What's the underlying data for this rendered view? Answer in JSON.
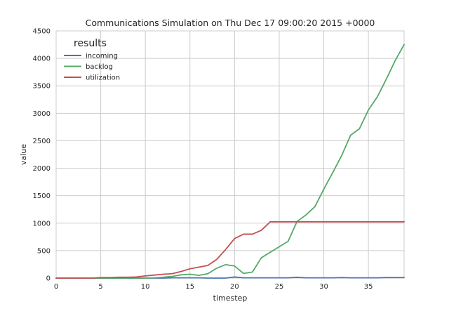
{
  "chart_data": {
    "type": "line",
    "title": "Communications Simulation on Thu Dec 17 09:00:20 2015 +0000",
    "xlabel": "timestep",
    "ylabel": "value",
    "xlim": [
      0,
      39
    ],
    "ylim": [
      0,
      4500
    ],
    "xticks": [
      0,
      5,
      10,
      15,
      20,
      25,
      30,
      35
    ],
    "yticks": [
      0,
      500,
      1000,
      1500,
      2000,
      2500,
      3000,
      3500,
      4000,
      4500
    ],
    "grid": true,
    "legend": {
      "title": "results",
      "placement": "top-left"
    },
    "x": [
      0,
      1,
      2,
      3,
      4,
      5,
      6,
      7,
      8,
      9,
      10,
      11,
      12,
      13,
      14,
      15,
      16,
      17,
      18,
      19,
      20,
      21,
      22,
      23,
      24,
      25,
      26,
      27,
      28,
      29,
      30,
      31,
      32,
      33,
      34,
      35,
      36,
      37,
      38,
      39
    ],
    "series": [
      {
        "name": "incoming",
        "color": "#4c72b0",
        "values": [
          0,
          0,
          0,
          0,
          0,
          0,
          0,
          0,
          0,
          0,
          0,
          0,
          0,
          5,
          5,
          5,
          5,
          0,
          0,
          0,
          20,
          5,
          5,
          5,
          5,
          5,
          5,
          15,
          5,
          5,
          5,
          5,
          10,
          5,
          5,
          5,
          5,
          10,
          10,
          10
        ]
      },
      {
        "name": "backlog",
        "color": "#55a868",
        "values": [
          0,
          0,
          0,
          0,
          0,
          0,
          0,
          0,
          0,
          0,
          0,
          5,
          15,
          30,
          60,
          70,
          50,
          80,
          180,
          245,
          220,
          85,
          110,
          370,
          470,
          570,
          670,
          1030,
          1150,
          1300,
          1620,
          1920,
          2230,
          2600,
          2720,
          3060,
          3300,
          3620,
          3960,
          4250
        ]
      },
      {
        "name": "utilization",
        "color": "#c44e52",
        "values": [
          0,
          0,
          0,
          0,
          0,
          10,
          10,
          15,
          15,
          20,
          40,
          55,
          70,
          80,
          120,
          170,
          200,
          230,
          340,
          520,
          720,
          800,
          800,
          870,
          1025,
          1025,
          1025,
          1025,
          1025,
          1025,
          1025,
          1025,
          1025,
          1025,
          1025,
          1025,
          1025,
          1025,
          1025,
          1025
        ]
      }
    ]
  }
}
